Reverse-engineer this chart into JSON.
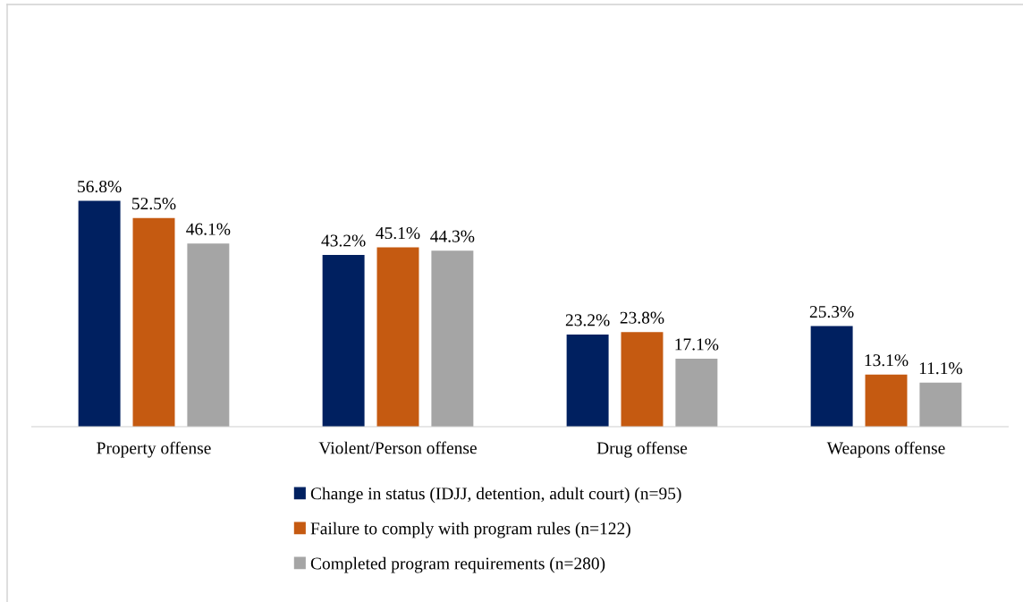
{
  "chart_data": {
    "type": "bar",
    "categories": [
      "Property offense",
      "Violent/Person offense",
      "Drug offense",
      "Weapons offense"
    ],
    "series": [
      {
        "name": "Change in status (IDJJ, detention, adult court) (n=95)",
        "color": "#002060",
        "values": [
          56.8,
          43.2,
          23.2,
          25.3
        ],
        "value_labels": [
          "56.8%",
          "43.2%",
          "23.2%",
          "25.3%"
        ]
      },
      {
        "name": "Failure to comply with program rules (n=122)",
        "color": "#c55a11",
        "values": [
          52.5,
          45.1,
          23.8,
          13.1
        ],
        "value_labels": [
          "52.5%",
          "45.1%",
          "23.8%",
          "13.1%"
        ]
      },
      {
        "name": "Completed program requirements (n=280)",
        "color": "#a5a5a5",
        "values": [
          46.1,
          44.3,
          17.1,
          11.1
        ],
        "value_labels": [
          "46.1%",
          "44.3%",
          "17.1%",
          "11.1%"
        ]
      }
    ],
    "legend": "bottom"
  }
}
